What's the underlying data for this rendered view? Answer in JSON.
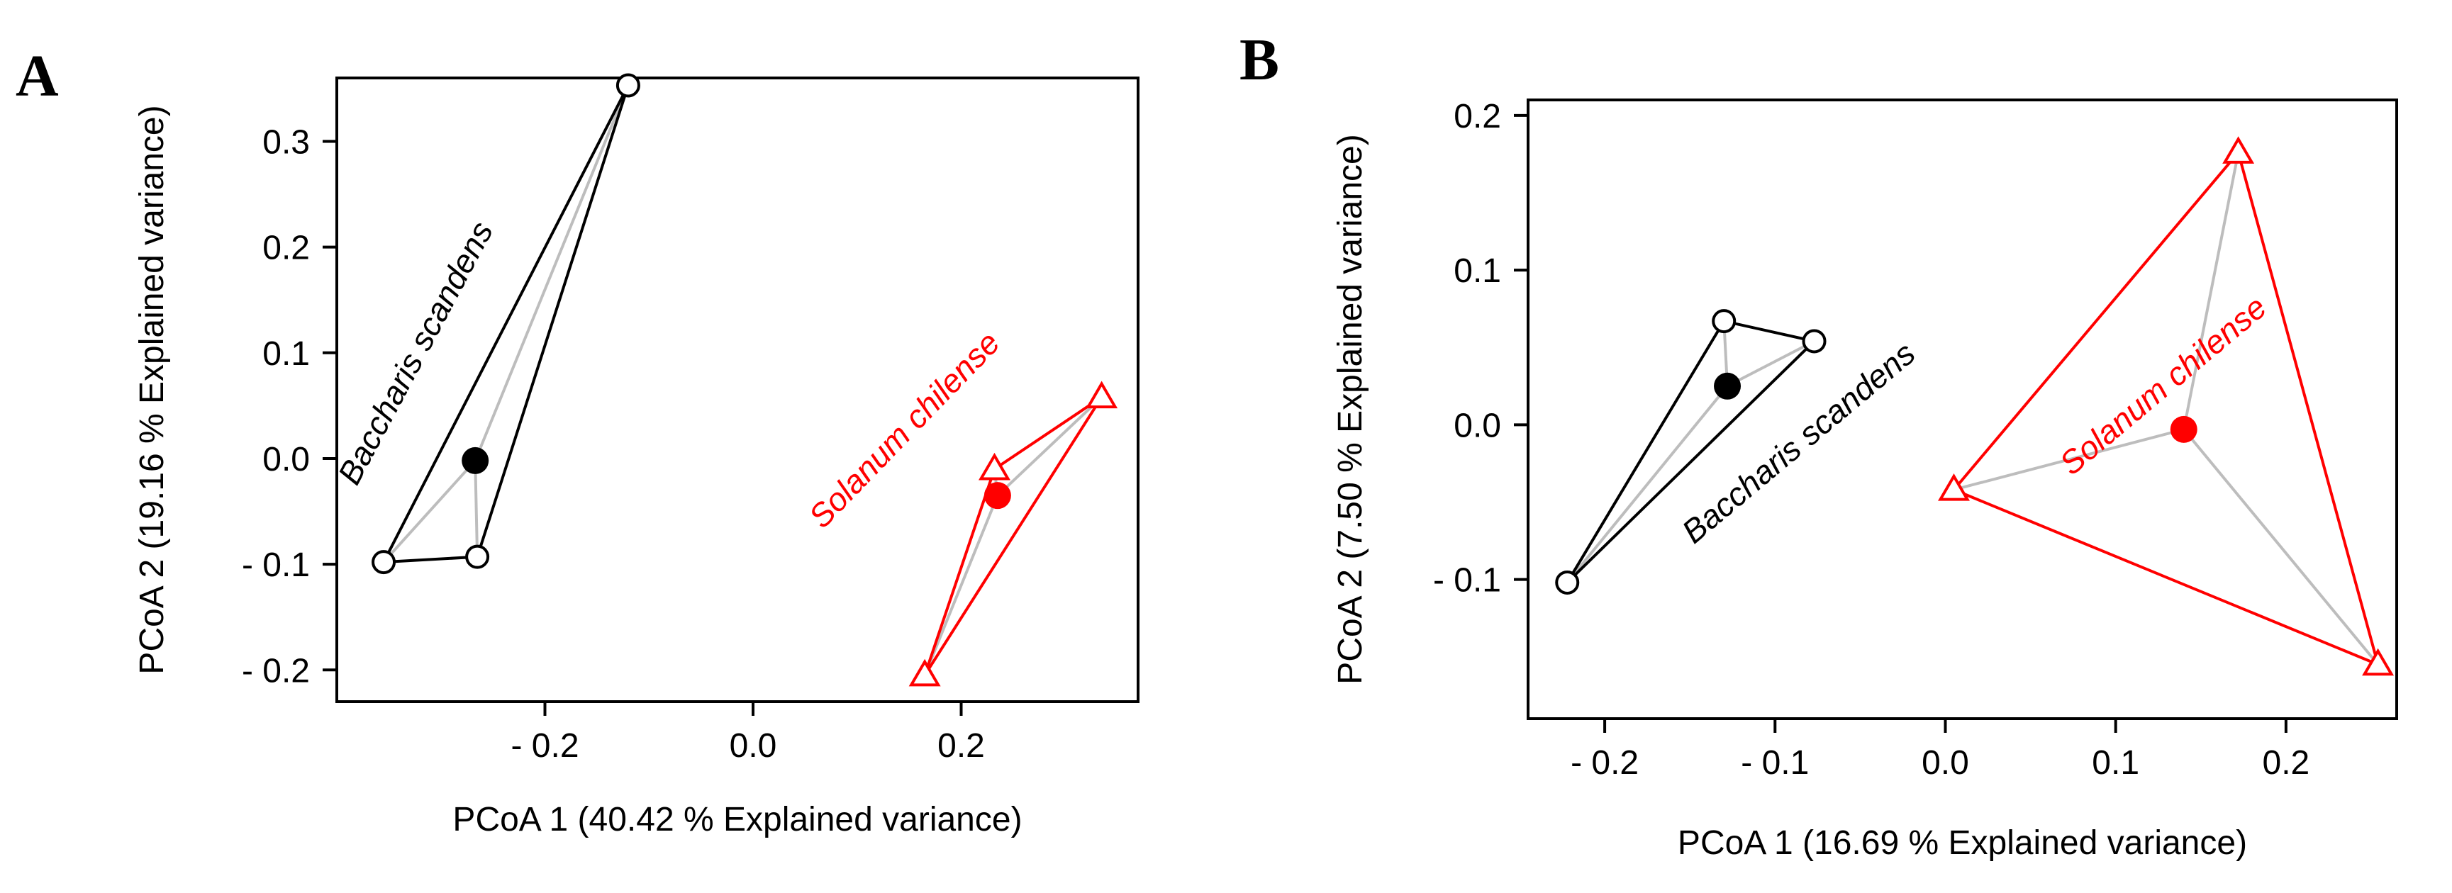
{
  "chart_data": [
    {
      "type": "scatter",
      "panel_label": "A",
      "xlabel": "PCoA 1 (40.42 % Explained variance)",
      "ylabel": "PCoA 2 (19.16 % Explained variance)",
      "xlim": [
        -0.4,
        0.37
      ],
      "ylim": [
        -0.23,
        0.36
      ],
      "xticks": [
        -0.2,
        0.0,
        0.2
      ],
      "xtick_labels": [
        "- 0.2",
        "0.0",
        "0.2"
      ],
      "yticks": [
        -0.2,
        -0.1,
        0.0,
        0.1,
        0.2,
        0.3
      ],
      "ytick_labels": [
        "- 0.2",
        "- 0.1",
        "0.0",
        "0.1",
        "0.2",
        "0.3"
      ],
      "groups": [
        {
          "name": "Baccharis scandens",
          "color": "#000000",
          "marker": "circle",
          "points": [
            [
              -0.355,
              -0.098
            ],
            [
              -0.265,
              -0.093
            ],
            [
              -0.12,
              0.353
            ]
          ],
          "centroid": [
            -0.267,
            -0.002
          ],
          "label_pos": [
            -0.315,
            0.095
          ],
          "label_angle": -62
        },
        {
          "name": "Solanum chilense",
          "color": "#ff0000",
          "marker": "triangle",
          "points": [
            [
              0.165,
              -0.205
            ],
            [
              0.232,
              -0.01
            ],
            [
              0.335,
              0.058
            ]
          ],
          "centroid": [
            0.235,
            -0.035
          ],
          "label_pos": [
            0.153,
            0.02
          ],
          "label_angle": -46
        }
      ]
    },
    {
      "type": "scatter",
      "panel_label": "B",
      "xlabel": "PCoA 1 (16.69 % Explained variance)",
      "ylabel": "PCoA 2 (7.50 % Explained variance)",
      "xlim": [
        -0.245,
        0.265
      ],
      "ylim": [
        -0.19,
        0.21
      ],
      "xticks": [
        -0.2,
        -0.1,
        0.0,
        0.1,
        0.2
      ],
      "xtick_labels": [
        "- 0.2",
        "- 0.1",
        "0.0",
        "0.1",
        "0.2"
      ],
      "yticks": [
        -0.1,
        0.0,
        0.1,
        0.2
      ],
      "ytick_labels": [
        "- 0.1",
        "0.0",
        "0.1",
        "0.2"
      ],
      "groups": [
        {
          "name": "Baccharis scandens",
          "color": "#000000",
          "marker": "circle",
          "points": [
            [
              -0.222,
              -0.102
            ],
            [
              -0.13,
              0.067
            ],
            [
              -0.077,
              0.054
            ]
          ],
          "centroid": [
            -0.128,
            0.025
          ],
          "label_pos": [
            -0.082,
            -0.017
          ],
          "label_angle": -40
        },
        {
          "name": "Solanum chilense",
          "color": "#ff0000",
          "marker": "triangle",
          "points": [
            [
              0.005,
              -0.042
            ],
            [
              0.172,
              0.176
            ],
            [
              0.254,
              -0.155
            ]
          ],
          "centroid": [
            0.14,
            -0.003
          ],
          "label_pos": [
            0.132,
            0.02
          ],
          "label_angle": -40
        }
      ]
    }
  ]
}
